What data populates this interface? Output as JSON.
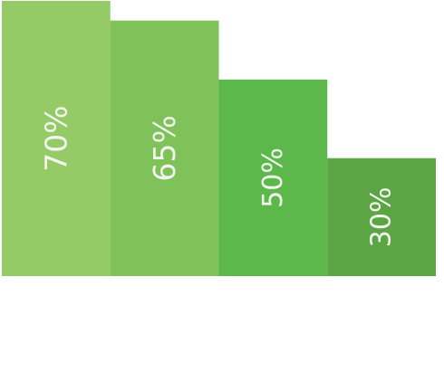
{
  "chart_data": {
    "type": "bar",
    "values": [
      70,
      65,
      50,
      30
    ],
    "data_labels": [
      "70%",
      "65%",
      "50%",
      "30%"
    ],
    "ylim": [
      0,
      70
    ],
    "grid": false,
    "legend": "none",
    "colors": [
      "#95cb66",
      "#7fc25a",
      "#5cb84a",
      "#5ba544"
    ]
  }
}
